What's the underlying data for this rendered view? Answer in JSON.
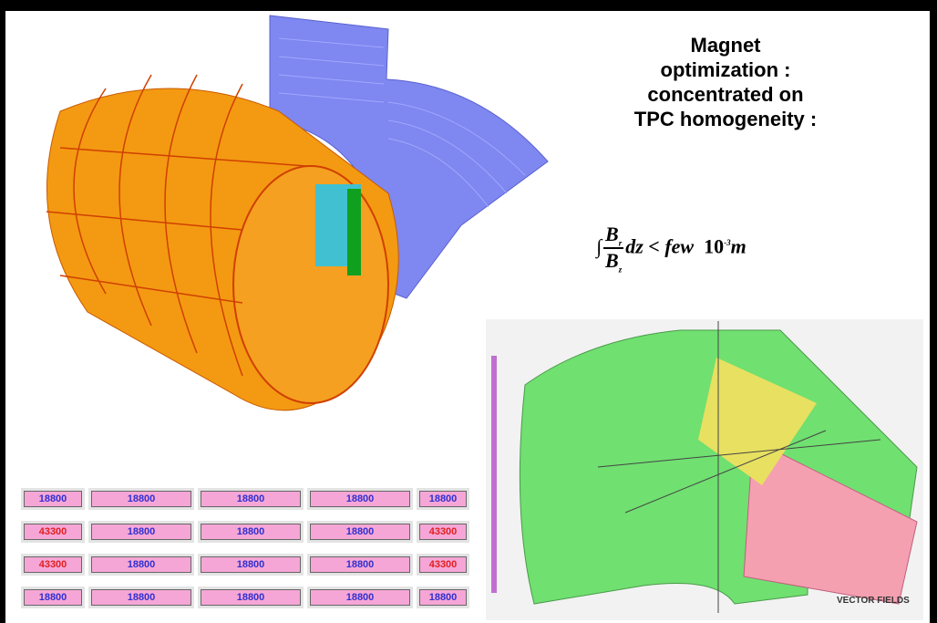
{
  "title_lines": [
    "Magnet",
    "optimization :",
    "concentrated on",
    "TPC homogeneity :"
  ],
  "formula": {
    "integral": "∫",
    "numerator": "B",
    "numerator_sub": "r",
    "denominator": "B",
    "denominator_sub": "z",
    "rest": "dz < few",
    "base": "10",
    "exponent": "-3",
    "unit": "m"
  },
  "table": {
    "rows": [
      [
        {
          "text": "18800",
          "color": "#3030d0"
        },
        {
          "text": "18800",
          "color": "#3030d0"
        },
        {
          "text": "18800",
          "color": "#3030d0"
        },
        {
          "text": "18800",
          "color": "#3030d0"
        },
        {
          "text": "18800",
          "color": "#3030d0"
        }
      ],
      [
        {
          "text": "43300",
          "color": "#e02020"
        },
        {
          "text": "18800",
          "color": "#3030d0"
        },
        {
          "text": "18800",
          "color": "#3030d0"
        },
        {
          "text": "18800",
          "color": "#3030d0"
        },
        {
          "text": "43300",
          "color": "#e02020"
        }
      ],
      [
        {
          "text": "43300",
          "color": "#e02020"
        },
        {
          "text": "18800",
          "color": "#3030d0"
        },
        {
          "text": "18800",
          "color": "#3030d0"
        },
        {
          "text": "18800",
          "color": "#3030d0"
        },
        {
          "text": "43300",
          "color": "#e02020"
        }
      ],
      [
        {
          "text": "18800",
          "color": "#3030d0"
        },
        {
          "text": "18800",
          "color": "#3030d0"
        },
        {
          "text": "18800",
          "color": "#3030d0"
        },
        {
          "text": "18800",
          "color": "#3030d0"
        },
        {
          "text": "18800",
          "color": "#3030d0"
        }
      ]
    ]
  },
  "logo": "VECTOR FIELDS"
}
